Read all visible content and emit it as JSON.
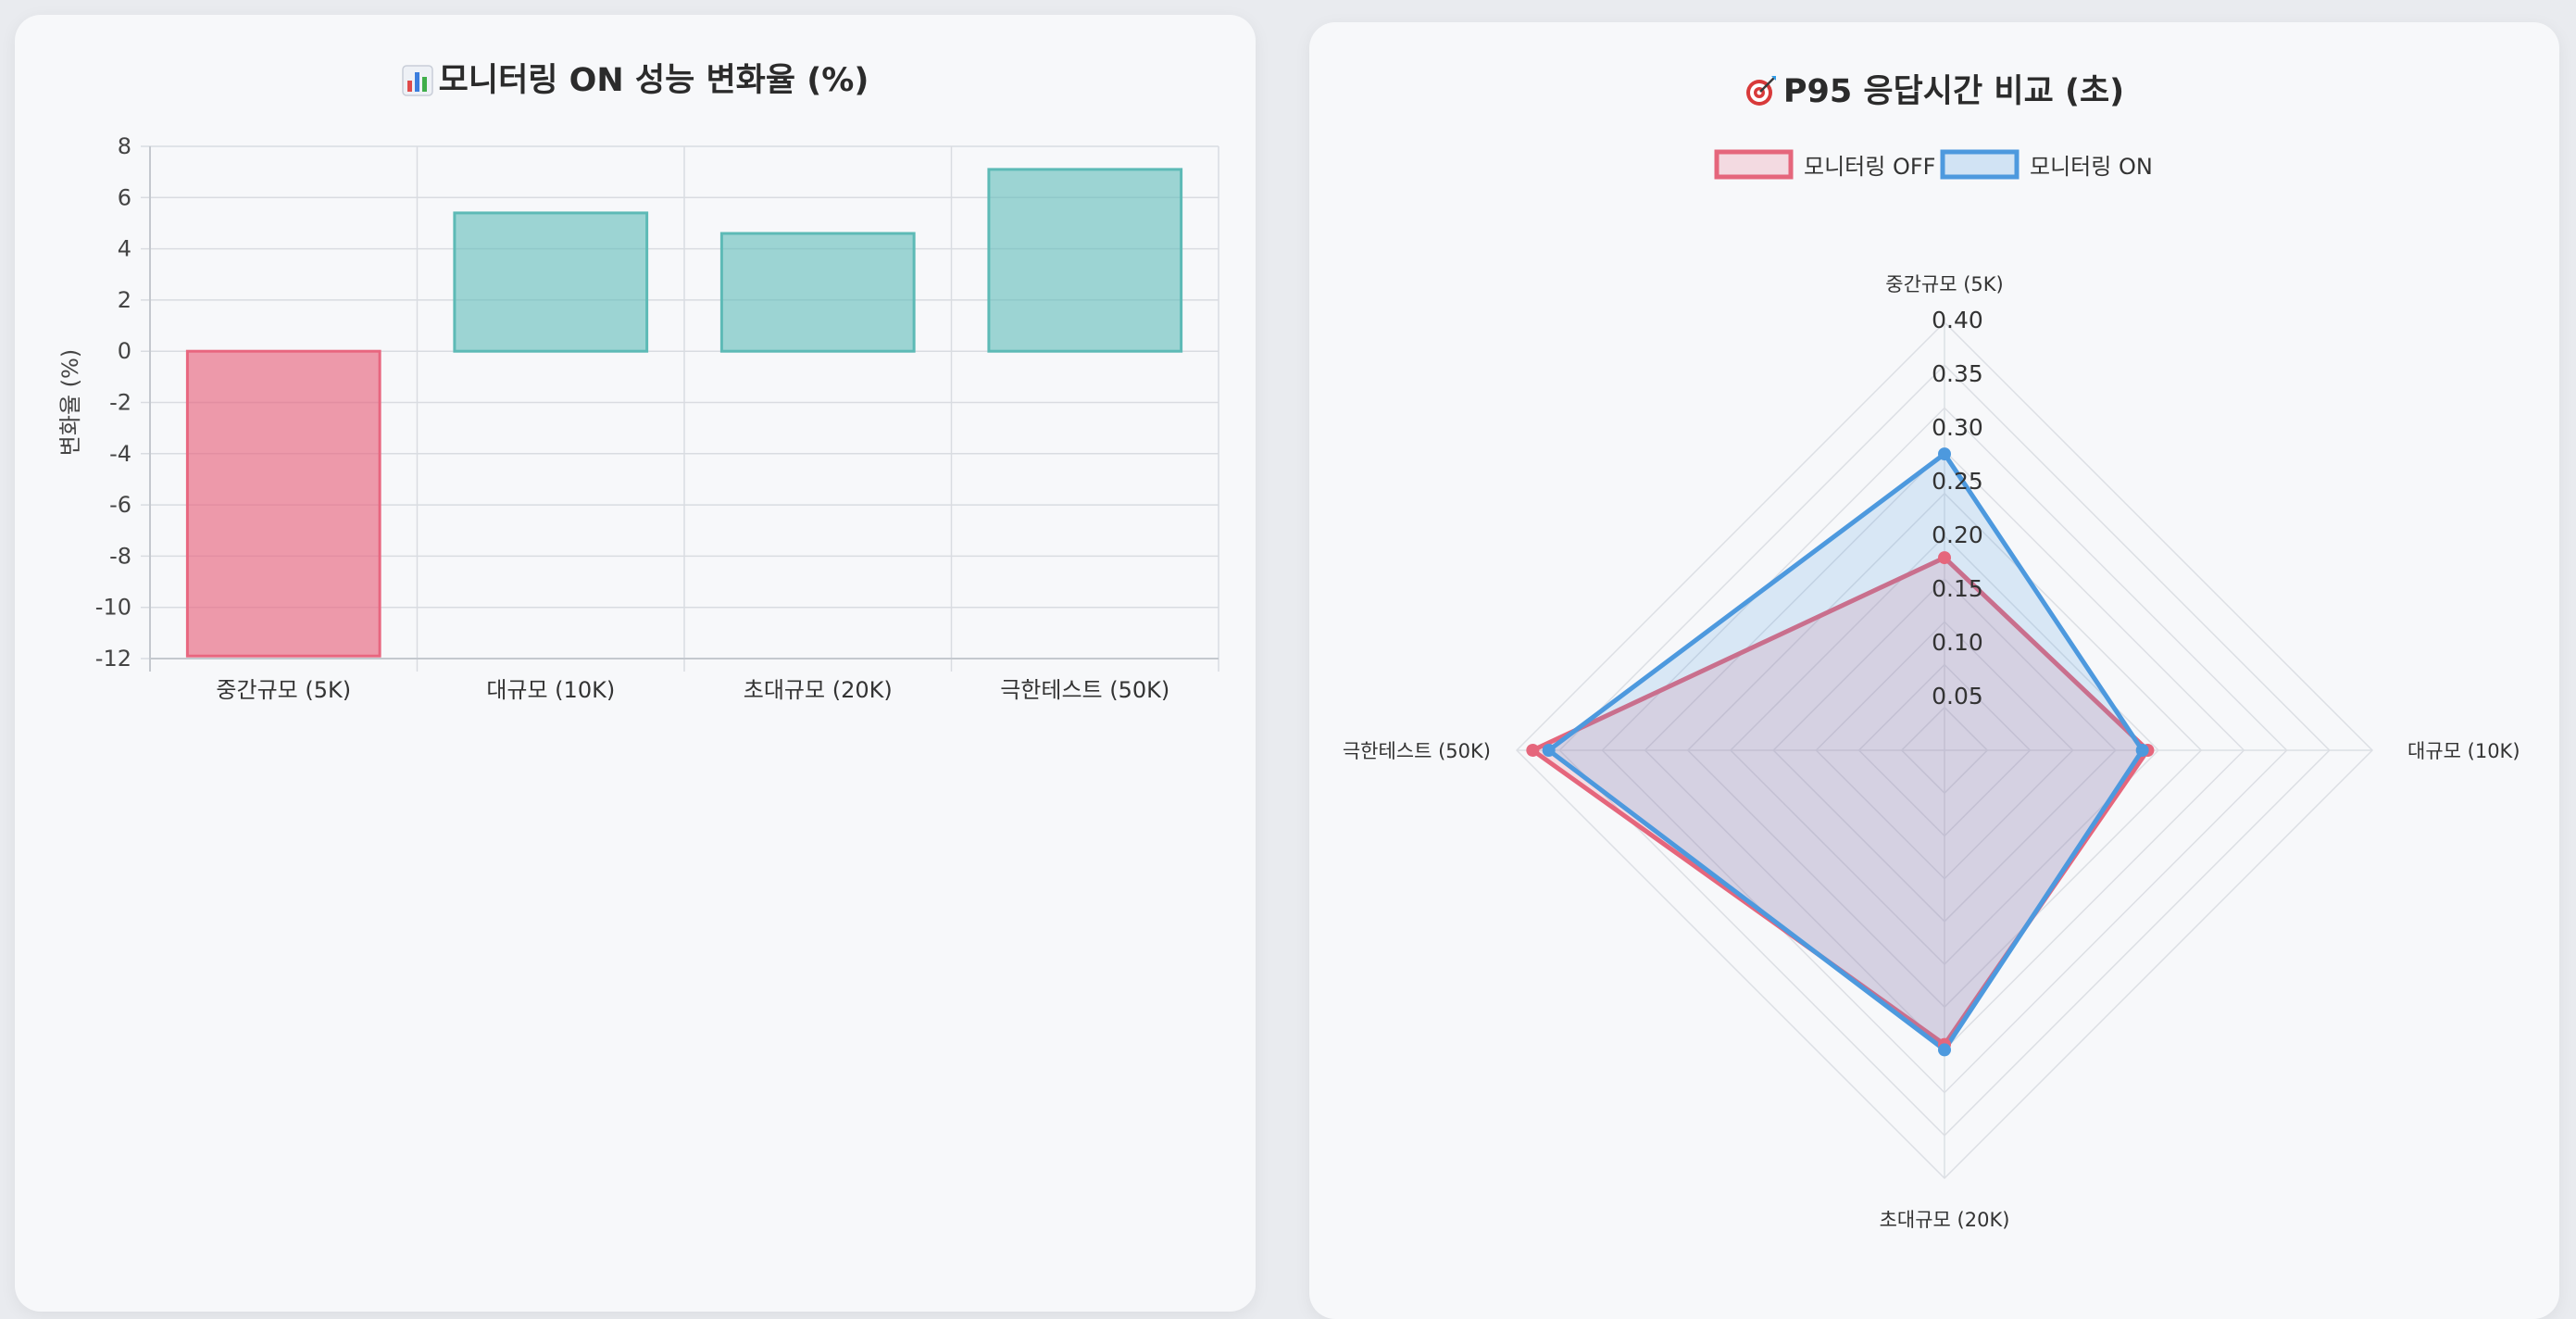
{
  "colors": {
    "negative_fill": "rgba(232,102,128,0.65)",
    "negative_stroke": "#e8667f",
    "positive_fill": "rgba(95,188,185,0.6)",
    "positive_stroke": "#5dbab6",
    "off_color": "#e5667c",
    "on_color": "#4d99de"
  },
  "bar_panel": {
    "icon": "bar-chart-icon",
    "title": "모니터링 ON 성능 변화율 (%)"
  },
  "radar_panel": {
    "icon": "target-icon",
    "title": "P95 응답시간 비교 (초)"
  },
  "chart_data": [
    {
      "type": "bar",
      "title": "모니터링 ON 성능 변화율 (%)",
      "xlabel": "",
      "ylabel": "변화율 (%)",
      "categories": [
        "중간규모 (5K)",
        "대규모 (10K)",
        "초대규모 (20K)",
        "극한테스트 (50K)"
      ],
      "values": [
        -11.9,
        5.4,
        4.6,
        7.1
      ],
      "ylim": [
        -12,
        8
      ],
      "yticks": [
        8,
        6,
        4,
        2,
        0,
        -2,
        -4,
        -6,
        -8,
        -10,
        -12
      ],
      "grid": true,
      "legend": "none"
    },
    {
      "type": "radar",
      "title": "P95 응답시간 비교 (초)",
      "categories": [
        "중간규모 (5K)",
        "대규모 (10K)",
        "초대규모 (20K)",
        "극한테스트 (50K)"
      ],
      "series": [
        {
          "name": "모니터링 OFF",
          "values": [
            0.18,
            0.19,
            0.275,
            0.385
          ]
        },
        {
          "name": "모니터링 ON",
          "values": [
            0.277,
            0.185,
            0.28,
            0.37
          ]
        }
      ],
      "rlim": [
        0,
        0.4
      ],
      "rticks": [
        "0.05",
        "0.10",
        "0.15",
        "0.20",
        "0.25",
        "0.30",
        "0.35",
        "0.40"
      ],
      "grid": true,
      "legend": "top"
    }
  ]
}
